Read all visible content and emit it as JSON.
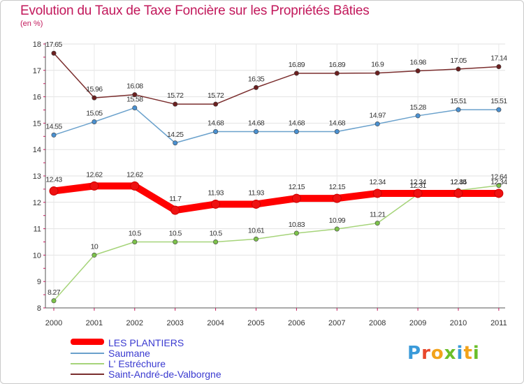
{
  "title": "Evolution du Taux de Taxe Foncière sur les Propriétés Bâties",
  "subtitle": "(en %)",
  "logo": {
    "letters": [
      "P",
      "r",
      "o",
      "x",
      "i",
      "t",
      "i"
    ],
    "colors": [
      "#3a9ad9",
      "#e8482c",
      "#f2a31b",
      "#6bbf2a",
      "#3a9ad9",
      "#f2a31b",
      "#6bbf2a"
    ]
  },
  "chart_data": {
    "type": "line",
    "title": "Evolution du Taux de Taxe Foncière sur les Propriétés Bâties",
    "ylabel": "(en %)",
    "xlabel": "",
    "ylim": [
      8,
      18
    ],
    "yticks": [
      "8",
      "9",
      "10",
      "11",
      "12",
      "13",
      "14",
      "15",
      "16",
      "17",
      "18"
    ],
    "categories": [
      "2000",
      "2001",
      "2002",
      "2003",
      "2004",
      "2005",
      "2006",
      "2007",
      "2008",
      "2009",
      "2010",
      "2011"
    ],
    "series": [
      {
        "name": "LES PLANTIERS",
        "color": "#ff0000",
        "thick": true,
        "values": [
          12.43,
          12.62,
          12.62,
          11.7,
          11.93,
          11.93,
          12.15,
          12.15,
          12.34,
          12.34,
          12.34,
          12.34
        ],
        "labels": [
          "12.43",
          "12.62",
          "12.62",
          "11.7",
          "11.93",
          "11.93",
          "12.15",
          "12.15",
          "12.34",
          "12.34",
          "12.34",
          "12.34"
        ]
      },
      {
        "name": "Saumane",
        "color": "#6aa1cc",
        "marker": "#4a90d0",
        "values": [
          14.55,
          15.05,
          15.58,
          14.25,
          14.68,
          14.68,
          14.68,
          14.68,
          14.97,
          15.28,
          15.51,
          15.51
        ],
        "labels": [
          "14.55",
          "15.05",
          "15.58",
          "14.25",
          "14.68",
          "14.68",
          "14.68",
          "14.68",
          "14.97",
          "15.28",
          "15.51",
          "15.51"
        ]
      },
      {
        "name": "L' Estréchure",
        "color": "#a6d47a",
        "marker": "#7cc24a",
        "values": [
          8.27,
          10,
          10.5,
          10.5,
          10.5,
          10.61,
          10.83,
          10.99,
          11.21,
          12.31,
          12.45,
          12.64
        ],
        "labels": [
          "8.27",
          "10",
          "10.5",
          "10.5",
          "10.5",
          "10.61",
          "10.83",
          "10.99",
          "11.21",
          "12.31",
          "12.45",
          "12.64"
        ]
      },
      {
        "name": "Saint-André-de-Valborgne",
        "color": "#7a2d2d",
        "marker": "#6b1f1f",
        "values": [
          17.65,
          15.96,
          16.08,
          15.72,
          15.72,
          16.35,
          16.89,
          16.89,
          16.9,
          16.98,
          17.05,
          17.14
        ],
        "labels": [
          "17.65",
          "15.96",
          "16.08",
          "15.72",
          "15.72",
          "16.35",
          "16.89",
          "16.89",
          "16.9",
          "16.98",
          "17.05",
          "17.14"
        ]
      }
    ]
  }
}
